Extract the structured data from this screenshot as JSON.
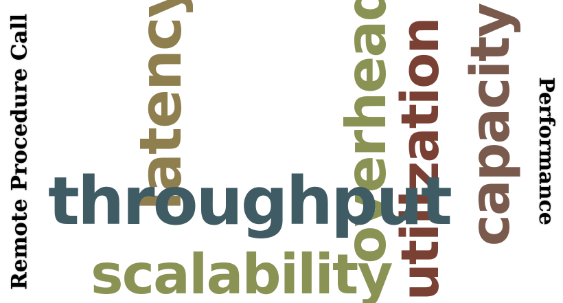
{
  "words": {
    "remote_procedure_call": {
      "text": "Remote Procedure Call",
      "color": "#000000"
    },
    "throughput": {
      "text": "throughput",
      "color": "#3f5b63"
    },
    "scalability": {
      "text": "scalability",
      "color": "#8a9354"
    },
    "latency": {
      "text": "latency",
      "color": "#8f7f4f"
    },
    "overhead": {
      "text": "overhead",
      "color": "#8a9354"
    },
    "utilization": {
      "text": "utilization",
      "color": "#7a4034"
    },
    "capacity": {
      "text": "capacity",
      "color": "#7b5a4e"
    },
    "performance": {
      "text": "Performance",
      "color": "#000000"
    }
  }
}
